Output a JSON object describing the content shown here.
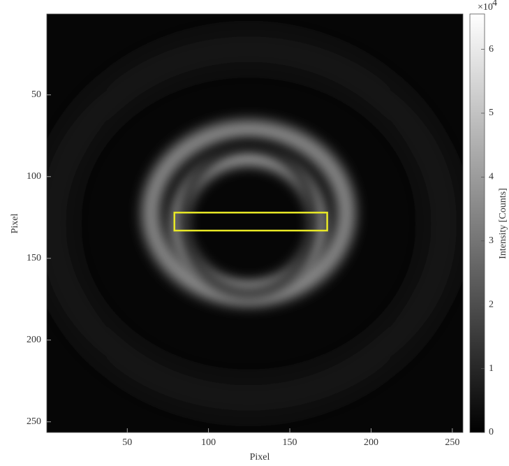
{
  "chart_data": {
    "type": "image",
    "xlabel": "Pixel",
    "ylabel": "Pixel",
    "xlim": [
      0.5,
      256.5
    ],
    "ylim": [
      0.5,
      256.5
    ],
    "y_reversed": true,
    "xticks": [
      50,
      100,
      150,
      200,
      250
    ],
    "yticks": [
      50,
      100,
      150,
      200,
      250
    ],
    "colormap": [
      "#000000",
      "#ffffff"
    ],
    "colorbar": {
      "label": "Intensity [Counts]",
      "clim": [
        0,
        65535
      ],
      "ticks": [
        {
          "value": 0,
          "label": "0"
        },
        {
          "value": 10000,
          "label": "1"
        },
        {
          "value": 20000,
          "label": "2"
        },
        {
          "value": 30000,
          "label": "3"
        },
        {
          "value": 40000,
          "label": "4"
        },
        {
          "value": 50000,
          "label": "5"
        },
        {
          "value": 60000,
          "label": "6"
        }
      ],
      "exponent_base": "×10",
      "exponent": "4"
    },
    "roi": {
      "x": [
        79,
        173
      ],
      "y": [
        122,
        133
      ],
      "color": "#e8e826"
    }
  }
}
